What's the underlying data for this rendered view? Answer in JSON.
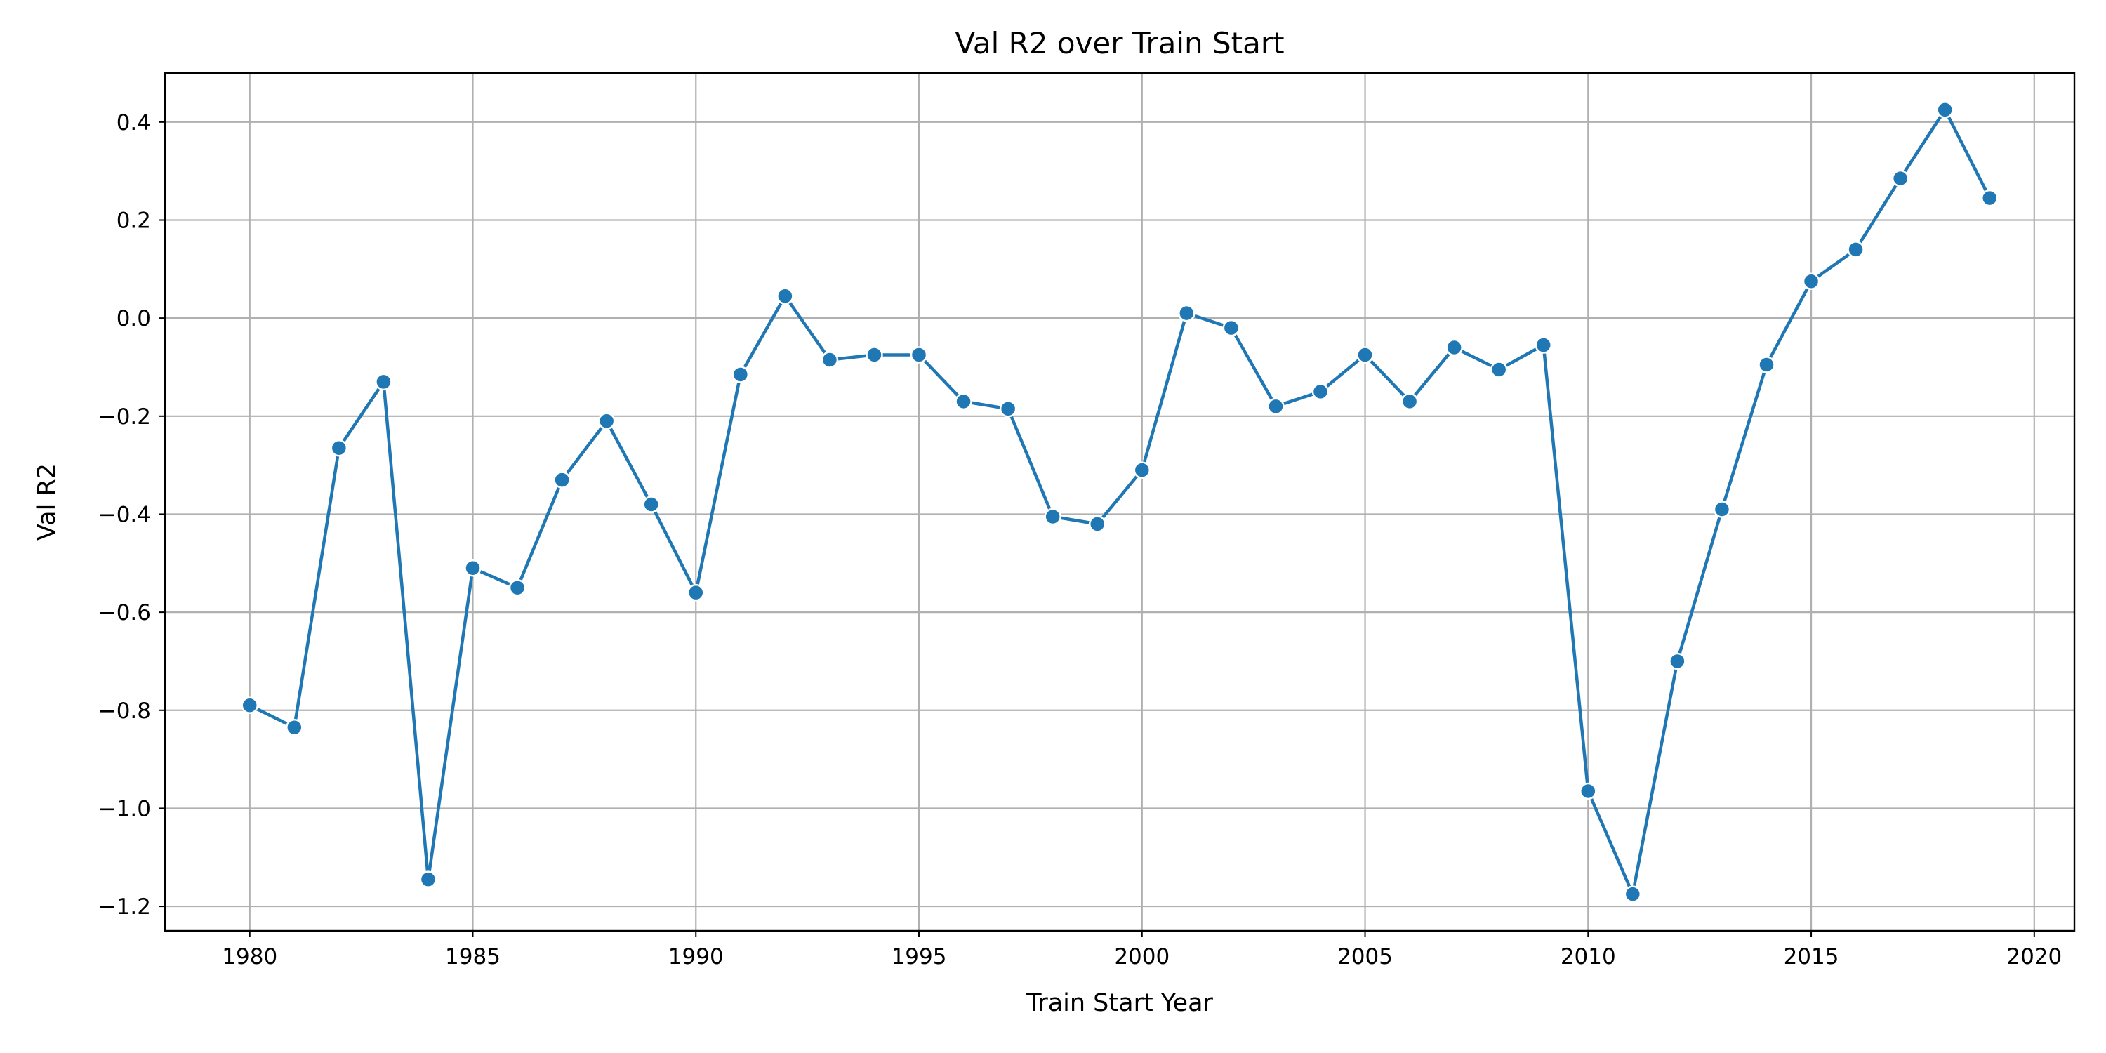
{
  "chart_data": {
    "type": "line",
    "title": "Val R2 over Train Start",
    "xlabel": "Train Start Year",
    "ylabel": "Val R2",
    "xlim": [
      1978.1,
      2020.9
    ],
    "ylim": [
      -1.25,
      0.5
    ],
    "x_ticks": [
      1980,
      1985,
      1990,
      1995,
      2000,
      2005,
      2010,
      2015,
      2020
    ],
    "y_ticks": [
      -1.2,
      -1.0,
      -0.8,
      -0.6,
      -0.4,
      -0.2,
      0.0,
      0.2,
      0.4
    ],
    "x_tick_labels": [
      "1980",
      "1985",
      "1990",
      "1995",
      "2000",
      "2005",
      "2010",
      "2015",
      "2020"
    ],
    "y_tick_labels": [
      "−1.2",
      "−1.0",
      "−0.8",
      "−0.6",
      "−0.4",
      "−0.2",
      "0.0",
      "0.2",
      "0.4"
    ],
    "grid": true,
    "marker": "circle",
    "series": [
      {
        "color": "#1f77b4",
        "x": [
          1980,
          1981,
          1982,
          1983,
          1984,
          1985,
          1986,
          1987,
          1988,
          1989,
          1990,
          1991,
          1992,
          1993,
          1994,
          1995,
          1996,
          1997,
          1998,
          1999,
          2000,
          2001,
          2002,
          2003,
          2004,
          2005,
          2006,
          2007,
          2008,
          2009,
          2010,
          2011,
          2012,
          2013,
          2014,
          2015,
          2016,
          2017,
          2018,
          2019
        ],
        "y": [
          -0.79,
          -0.835,
          -0.265,
          -0.13,
          -1.145,
          -0.51,
          -0.55,
          -0.33,
          -0.21,
          -0.38,
          -0.56,
          -0.115,
          0.045,
          -0.085,
          -0.075,
          -0.075,
          -0.17,
          -0.185,
          -0.405,
          -0.42,
          -0.31,
          0.01,
          -0.02,
          -0.18,
          -0.15,
          -0.075,
          -0.17,
          -0.06,
          -0.105,
          -0.055,
          -0.965,
          -1.175,
          -0.7,
          -0.39,
          -0.095,
          0.075,
          0.14,
          0.285,
          0.425,
          0.245
        ]
      }
    ]
  }
}
